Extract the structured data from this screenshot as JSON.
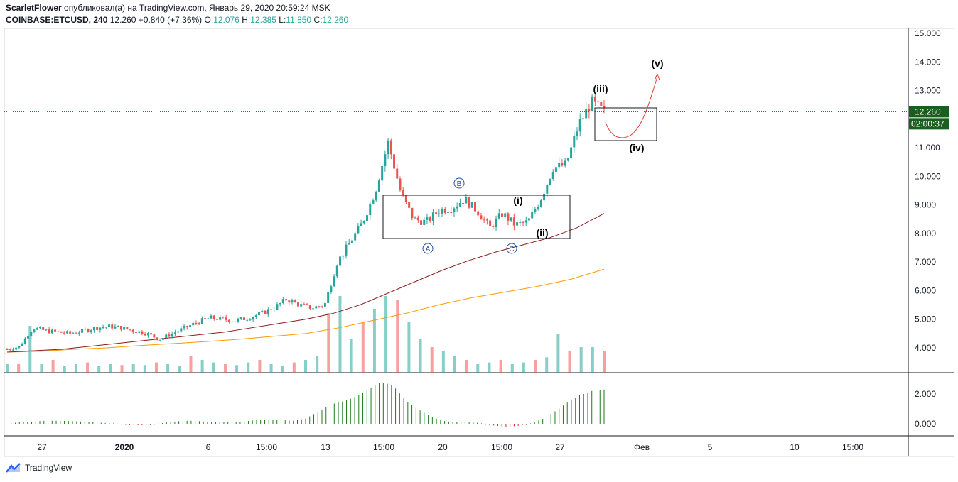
{
  "header": {
    "author": "ScarletFlower",
    "published_text": "опубликовал(а) на TradingView.com, Январь 29, 2020 20:59:24 MSK",
    "symbol": "COINBASE:ETCUSD, 240",
    "last": "12.260",
    "change": "+0.840 (+7.36%)",
    "o_label": "O:",
    "o_value": "12.076",
    "h_label": "H:",
    "h_value": "12.385",
    "l_label": "L:",
    "l_value": "11.850",
    "c_label": "C:",
    "c_value": "12.260"
  },
  "price_axis": [
    "15.000",
    "14.000",
    "13.000",
    "11.000",
    "10.000",
    "9.000",
    "8.000",
    "7.000",
    "6.000",
    "5.000",
    "4.000"
  ],
  "price_axis_values": [
    15,
    14,
    13,
    11,
    10,
    9,
    8,
    7,
    6,
    5,
    4
  ],
  "price_label": {
    "price": "12.260",
    "value": 12.26,
    "countdown": "02:00:37"
  },
  "osc_axis": [
    "2.000",
    "0.000"
  ],
  "osc_axis_values": [
    2,
    0
  ],
  "time_axis": [
    "27",
    "2020",
    "6",
    "15:00",
    "13",
    "15:00",
    "20",
    "15:00",
    "27",
    "Фев",
    "5",
    "10",
    "15:00"
  ],
  "wave_labels": {
    "v": "(v)",
    "iii": "(iii)",
    "iv": "(iv)",
    "i": "(i)",
    "ii": "(ii)",
    "A": "A",
    "B": "B",
    "C": "C"
  },
  "footer": {
    "brand": "TradingView"
  },
  "colors": {
    "up": "#26a69a",
    "down": "#ef5350",
    "ma_long": "#ff9800",
    "ma_mid": "#8b1a1a",
    "osc_bar": "#1b7a1b",
    "osc_neg": "#c62828",
    "price_tag": "#1b5e20"
  },
  "chart_data": {
    "type": "candlestick",
    "symbol": "COINBASE:ETCUSD",
    "interval": "240",
    "y_unit": "USD",
    "ylim": [
      3.1,
      15.2
    ],
    "last_price": 12.26,
    "price_path": [
      3.95,
      4.05,
      4.7,
      4.6,
      4.55,
      4.5,
      4.6,
      4.7,
      4.75,
      4.7,
      4.6,
      4.5,
      4.3,
      4.5,
      4.7,
      4.9,
      5.05,
      5.0,
      4.95,
      5.05,
      5.2,
      5.4,
      5.7,
      5.5,
      5.4,
      5.5,
      7.0,
      7.7,
      8.4,
      9.5,
      11.2,
      9.4,
      8.5,
      8.4,
      8.8,
      8.9,
      9.2,
      8.8,
      8.2,
      8.7,
      8.3,
      8.4,
      9.2,
      10.3,
      10.4,
      11.8,
      12.6,
      12.26
    ],
    "ma_200": [
      3.85,
      3.9,
      3.95,
      4.05,
      4.15,
      4.25,
      4.35,
      4.45,
      4.55,
      4.7,
      4.85,
      5.0,
      5.2,
      5.5,
      5.9,
      6.3,
      6.7,
      7.05,
      7.35,
      7.6,
      7.85,
      8.2,
      8.7
    ],
    "ma_400": [
      3.85,
      3.88,
      3.95,
      4.0,
      4.08,
      4.15,
      4.22,
      4.3,
      4.4,
      4.5,
      4.7,
      4.95,
      5.2,
      5.5,
      5.75,
      5.95,
      6.15,
      6.4,
      6.75
    ],
    "volume_relative": [
      0.1,
      0.1,
      0.55,
      0.1,
      0.15,
      0.08,
      0.1,
      0.12,
      0.08,
      0.1,
      0.09,
      0.1,
      0.09,
      0.12,
      0.1,
      0.08,
      0.2,
      0.15,
      0.12,
      0.1,
      0.09,
      0.12,
      0.15,
      0.1,
      0.08,
      0.12,
      0.15,
      0.2,
      0.7,
      0.9,
      0.4,
      0.6,
      0.75,
      0.9,
      0.85,
      0.6,
      0.4,
      0.3,
      0.25,
      0.2,
      0.15,
      0.1,
      0.12,
      0.15,
      0.1,
      0.12,
      0.15,
      0.18,
      0.45,
      0.25,
      0.3,
      0.3,
      0.25
    ],
    "oscillator": [
      0.0,
      0.1,
      0.15,
      0.2,
      0.2,
      0.18,
      0.15,
      0.1,
      0.05,
      0.0,
      -0.05,
      -0.08,
      0.0,
      0.1,
      0.2,
      0.2,
      0.15,
      0.1,
      0.1,
      0.15,
      0.25,
      0.3,
      0.25,
      0.2,
      0.35,
      0.8,
      1.3,
      1.5,
      1.8,
      2.3,
      2.8,
      2.6,
      1.6,
      1.0,
      0.5,
      0.2,
      0.1,
      0.15,
      0.05,
      -0.1,
      -0.2,
      -0.15,
      0.0,
      0.3,
      0.8,
      1.4,
      1.9,
      2.2,
      2.3
    ],
    "oscillator_ylim": [
      -0.5,
      3.0
    ],
    "x_ticks": [
      "27",
      "2020",
      "6",
      "15:00",
      "13",
      "15:00",
      "20",
      "15:00",
      "27",
      "Фев",
      "5",
      "10",
      "15:00"
    ],
    "y_ticks": [
      4,
      5,
      6,
      7,
      8,
      9,
      10,
      11,
      12,
      13,
      14,
      15
    ],
    "annotations": {
      "box_range": [
        7.8,
        9.35
      ],
      "forecast_box": [
        11.25,
        12.4
      ],
      "waves": [
        "(i)",
        "(ii)",
        "(iii)",
        "(iv)",
        "(v)",
        "A",
        "B",
        "C"
      ]
    },
    "grid": false
  }
}
